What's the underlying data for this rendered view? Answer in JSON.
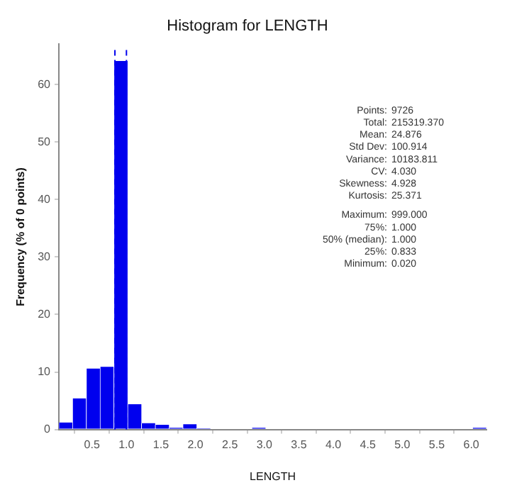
{
  "chart_data": {
    "type": "histogram",
    "title": "Histogram for LENGTH",
    "xlabel": "LENGTH",
    "ylabel": "Frequency (% of 0 points)",
    "bins": [
      0.02,
      0.22,
      0.42,
      0.62,
      0.82,
      1.02,
      1.22,
      1.42,
      1.62,
      1.82,
      2.02,
      2.22,
      2.42,
      2.62,
      2.82,
      3.02,
      3.22,
      3.42,
      3.62,
      3.82,
      4.02,
      4.22,
      4.42,
      4.62,
      4.82,
      5.02,
      5.22,
      5.42,
      5.62,
      5.82,
      6.02,
      6.22
    ],
    "values": [
      1.2,
      5.4,
      10.6,
      10.9,
      64.1,
      4.4,
      1.1,
      0.8,
      0.3,
      0.9,
      0.2,
      0,
      0,
      0,
      0.3,
      0,
      0,
      0,
      0,
      0,
      0,
      0,
      0,
      0,
      0,
      0,
      0,
      0,
      0,
      0,
      0.3
    ],
    "color": "#0000ee",
    "xlim": [
      0.02,
      6.22
    ],
    "xticks": [
      {
        "value": 0.5,
        "label": "0.5"
      },
      {
        "value": 1,
        "label": "1.0"
      },
      {
        "value": 1.5,
        "label": "1.5"
      },
      {
        "value": 2,
        "label": "2.0"
      },
      {
        "value": 2.5,
        "label": "2.5"
      },
      {
        "value": 3,
        "label": "3.0"
      },
      {
        "value": 3.5,
        "label": "3.5"
      },
      {
        "value": 4,
        "label": "4.0"
      },
      {
        "value": 4.5,
        "label": "4.5"
      },
      {
        "value": 5,
        "label": "5.0"
      },
      {
        "value": 5.5,
        "label": "5.5"
      },
      {
        "value": 6,
        "label": "6.0"
      }
    ],
    "ylim": [
      0,
      67
    ],
    "yticks": [
      0,
      10,
      20,
      30,
      40,
      50,
      60
    ],
    "grid": false,
    "legend": false,
    "ref_lines": [
      {
        "axis": "x",
        "value": 0.833,
        "color": "#0000ee",
        "line_style": "dashed"
      },
      {
        "axis": "x",
        "value": 1,
        "color": "#0000ee",
        "line_style": "dashed"
      }
    ],
    "annotations": [
      "Points: 9726",
      "Total: 215319.370",
      "Mean: 24.876",
      "Std Dev: 100.914",
      "Variance: 10183.811",
      "CV: 4.030",
      "Skewness: 4.928",
      "Kurtosis: 25.371",
      "Maximum: 999.000",
      "75%: 1.000",
      "50% (median): 1.000",
      "25%: 0.833",
      "Minimum: 0.020"
    ]
  }
}
